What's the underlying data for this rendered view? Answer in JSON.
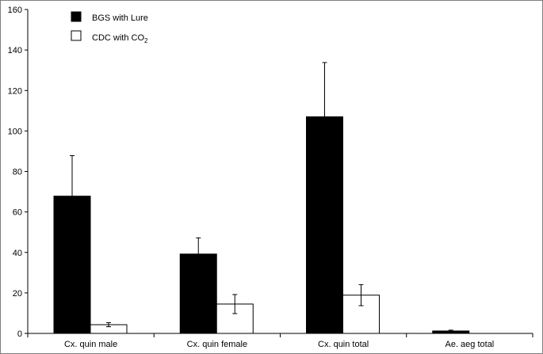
{
  "chart_data": {
    "type": "bar",
    "categories": [
      "Cx. quin male",
      "Cx. quin female",
      "Cx. quin total",
      "Ae. aeg total"
    ],
    "series": [
      {
        "name": "BGS with Lure",
        "color": "#000000",
        "values": [
          67.8,
          39.2,
          107.0,
          1.2
        ],
        "error": [
          20.0,
          8.0,
          26.8,
          0.4
        ]
      },
      {
        "name": "CDC with CO2",
        "color": "#ffffff",
        "values": [
          4.3,
          14.5,
          18.9,
          0.0
        ],
        "error": [
          1.0,
          4.7,
          5.2,
          0.0
        ]
      }
    ],
    "ylim": [
      0,
      160
    ],
    "yticks": [
      "0",
      "20",
      "40",
      "60",
      "80",
      "100",
      "120",
      "140",
      "160"
    ],
    "title": "",
    "xlabel": "",
    "ylabel": "",
    "grid": false,
    "legend_position": "top-left",
    "legend": {
      "bgs_label": "BGS with Lure",
      "cdc_label_main": "CDC with CO",
      "cdc_label_sub": "2"
    }
  }
}
